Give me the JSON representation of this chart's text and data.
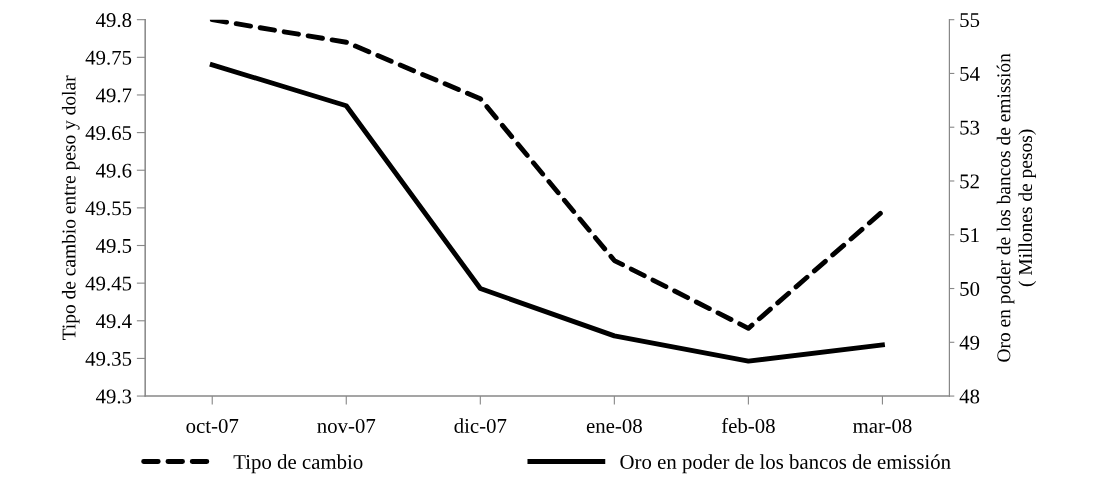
{
  "chart_data": {
    "type": "line",
    "ylabel": "Tipo de cambio entre peso y dolar",
    "y2label": "Oro en poder de los bancos de emissión\n( Millones de pesos)",
    "categories": [
      "oct-07",
      "nov-07",
      "dic-07",
      "ene-08",
      "feb-08",
      "mar-08"
    ],
    "series": [
      {
        "name": "Tipo de cambio",
        "color": "#000000",
        "line_style": "dashed",
        "values": [
          49.8,
          49.77,
          49.695,
          49.48,
          49.39,
          49.545
        ]
      },
      {
        "name": "Oro en poder de los bancos de emissión",
        "color": "#000000",
        "line_style": "solid",
        "axis": "y2",
        "values": [
          54.16,
          53.4,
          50.0,
          49.12,
          48.65,
          48.95
        ]
      }
    ],
    "ylim": [
      49.3,
      49.8
    ],
    "yticks": [
      49.3,
      49.35,
      49.4,
      49.45,
      49.5,
      49.55,
      49.6,
      49.65,
      49.7,
      49.75,
      49.8
    ],
    "y2lim": [
      48,
      55
    ],
    "y2ticks": [
      48,
      49,
      50,
      51,
      52,
      53,
      54,
      55
    ],
    "grid": false,
    "legend": "bottom",
    "marker": "none"
  }
}
